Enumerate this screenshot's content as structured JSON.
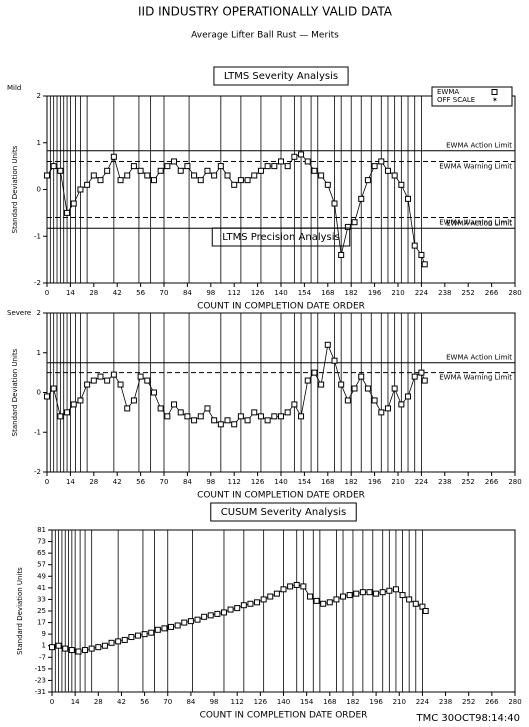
{
  "header": {
    "title": "IID    INDUSTRY OPERATIONALLY VALID DATA",
    "subtitle": "Average Lifter Ball Rust — Merits"
  },
  "footer": "TMC  30OCT98:14:40",
  "chart_data": [
    {
      "type": "line",
      "title": "LTMS Severity Analysis",
      "ylabel": "Standard Deviation Units",
      "xlabel": "COUNT IN COMPLETION DATE ORDER",
      "top_note": "Mild",
      "bottom_note": "Severe",
      "legend_extra": "OFF SCALE",
      "xlim": [
        0,
        280
      ],
      "xticks": [
        0,
        14,
        28,
        42,
        56,
        70,
        84,
        98,
        112,
        126,
        140,
        154,
        168,
        182,
        196,
        210,
        224,
        238,
        252,
        266,
        280
      ],
      "ylim": [
        -2,
        2
      ],
      "yticks": [
        -2,
        -1,
        0,
        1,
        2
      ],
      "event_x": [
        2,
        4,
        6,
        8,
        10,
        12,
        14,
        17,
        20,
        24,
        40,
        55,
        62,
        70,
        85,
        104,
        116,
        128,
        140,
        148,
        152,
        158,
        162,
        172,
        176,
        182,
        188,
        194,
        200,
        204,
        208,
        212,
        216,
        220,
        224
      ],
      "limits": [
        {
          "value": 0.83,
          "label": "EWMA Action Limit"
        },
        {
          "value": 0.6,
          "label": "EWMA Warning Limit"
        },
        {
          "value": -0.6,
          "label": "EWMA Warning Limit"
        },
        {
          "value": -0.83,
          "label": "EWMA Action Limit"
        }
      ],
      "x": [
        0,
        4,
        8,
        12,
        16,
        20,
        24,
        28,
        32,
        36,
        40,
        44,
        48,
        52,
        56,
        60,
        64,
        68,
        72,
        76,
        80,
        84,
        88,
        92,
        96,
        100,
        104,
        108,
        112,
        116,
        120,
        124,
        128,
        132,
        136,
        140,
        144,
        148,
        152,
        156,
        160,
        164,
        168,
        172,
        176,
        180,
        184,
        188,
        192,
        196,
        200,
        204,
        208,
        212,
        216,
        220,
        224,
        226
      ],
      "series": [
        {
          "name": "EWMA",
          "color": "#000000",
          "values": [
            0.3,
            0.5,
            0.4,
            -0.5,
            -0.3,
            0.0,
            0.1,
            0.3,
            0.2,
            0.4,
            0.7,
            0.2,
            0.3,
            0.5,
            0.4,
            0.3,
            0.2,
            0.4,
            0.5,
            0.6,
            0.4,
            0.5,
            0.3,
            0.2,
            0.4,
            0.3,
            0.5,
            0.3,
            0.1,
            0.2,
            0.2,
            0.3,
            0.4,
            0.5,
            0.5,
            0.6,
            0.5,
            0.7,
            0.75,
            0.6,
            0.4,
            0.3,
            0.1,
            -0.3,
            -1.4,
            -0.8,
            -0.7,
            -0.2,
            0.2,
            0.5,
            0.6,
            0.4,
            0.3,
            0.1,
            -0.2,
            -1.2,
            -1.4,
            -1.6
          ]
        }
      ]
    },
    {
      "type": "line",
      "title": "LTMS Precision Analysis",
      "ylabel": "Standard Deviation Units",
      "xlabel": "COUNT IN COMPLETION DATE ORDER",
      "xlim": [
        0,
        280
      ],
      "xticks": [
        0,
        14,
        28,
        42,
        56,
        70,
        84,
        98,
        112,
        126,
        140,
        154,
        168,
        182,
        196,
        210,
        224,
        238,
        252,
        266,
        280
      ],
      "ylim": [
        -2,
        2
      ],
      "yticks": [
        -2,
        -1,
        0,
        1,
        2
      ],
      "event_x": [
        2,
        4,
        6,
        8,
        10,
        12,
        14,
        17,
        20,
        24,
        40,
        55,
        62,
        70,
        85,
        104,
        116,
        128,
        140,
        148,
        152,
        158,
        162,
        172,
        176,
        182,
        188,
        194,
        200,
        204,
        208,
        212,
        216,
        220,
        224
      ],
      "limits": [
        {
          "value": 0.75,
          "label": "EWMA Action Limit"
        },
        {
          "value": 0.5,
          "label": "EWMA Warning Limit"
        }
      ],
      "x": [
        0,
        4,
        8,
        12,
        16,
        20,
        24,
        28,
        32,
        36,
        40,
        44,
        48,
        52,
        56,
        60,
        64,
        68,
        72,
        76,
        80,
        84,
        88,
        92,
        96,
        100,
        104,
        108,
        112,
        116,
        120,
        124,
        128,
        132,
        136,
        140,
        144,
        148,
        152,
        156,
        160,
        164,
        168,
        172,
        176,
        180,
        184,
        188,
        192,
        196,
        200,
        204,
        208,
        212,
        216,
        220,
        224,
        226
      ],
      "series": [
        {
          "name": "EWMA",
          "color": "#000000",
          "values": [
            -0.1,
            0.1,
            -0.6,
            -0.5,
            -0.3,
            -0.2,
            0.2,
            0.3,
            0.4,
            0.3,
            0.45,
            0.2,
            -0.4,
            -0.2,
            0.4,
            0.3,
            0.0,
            -0.4,
            -0.6,
            -0.3,
            -0.5,
            -0.6,
            -0.7,
            -0.6,
            -0.4,
            -0.7,
            -0.8,
            -0.7,
            -0.8,
            -0.6,
            -0.7,
            -0.5,
            -0.6,
            -0.7,
            -0.6,
            -0.6,
            -0.5,
            -0.3,
            -0.6,
            0.3,
            0.5,
            0.2,
            1.2,
            0.8,
            0.2,
            -0.2,
            0.1,
            0.4,
            0.1,
            -0.2,
            -0.5,
            -0.4,
            0.1,
            -0.3,
            -0.1,
            0.4,
            0.5,
            0.3
          ]
        }
      ]
    },
    {
      "type": "line",
      "title": "CUSUM Severity Analysis",
      "ylabel": "Standard Deviation Units",
      "xlabel": "COUNT IN COMPLETION DATE ORDER",
      "xlim": [
        0,
        280
      ],
      "xticks": [
        0,
        14,
        28,
        42,
        56,
        70,
        84,
        98,
        112,
        126,
        140,
        154,
        168,
        182,
        196,
        210,
        224,
        238,
        252,
        266,
        280
      ],
      "ylim": [
        -31,
        81
      ],
      "yticks": [
        -31,
        -23,
        -15,
        -7,
        1,
        9,
        17,
        25,
        33,
        41,
        49,
        57,
        65,
        73,
        81
      ],
      "event_x": [
        2,
        4,
        6,
        8,
        10,
        12,
        14,
        17,
        20,
        24,
        40,
        55,
        62,
        70,
        85,
        104,
        116,
        128,
        140,
        148,
        152,
        158,
        162,
        172,
        176,
        182,
        188,
        194,
        200,
        204,
        208,
        212,
        216,
        220,
        224
      ],
      "x": [
        0,
        4,
        8,
        12,
        16,
        20,
        24,
        28,
        32,
        36,
        40,
        44,
        48,
        52,
        56,
        60,
        64,
        68,
        72,
        76,
        80,
        84,
        88,
        92,
        96,
        100,
        104,
        108,
        112,
        116,
        120,
        124,
        128,
        132,
        136,
        140,
        144,
        148,
        152,
        156,
        160,
        164,
        168,
        172,
        176,
        180,
        184,
        188,
        192,
        196,
        200,
        204,
        208,
        212,
        216,
        220,
        224,
        226
      ],
      "series": [
        {
          "name": "CUSUM",
          "color": "#000000",
          "values": [
            0,
            1,
            -1,
            -2,
            -3,
            -2,
            -1,
            0,
            1,
            3,
            4,
            5,
            7,
            8,
            9,
            10,
            12,
            13,
            14,
            15,
            17,
            18,
            19,
            21,
            22,
            23,
            24,
            26,
            27,
            29,
            30,
            31,
            33,
            35,
            37,
            40,
            42,
            43,
            42,
            35,
            32,
            30,
            31,
            33,
            35,
            36,
            37,
            38,
            38,
            37,
            38,
            39,
            40,
            36,
            33,
            30,
            28,
            25
          ]
        }
      ]
    }
  ]
}
